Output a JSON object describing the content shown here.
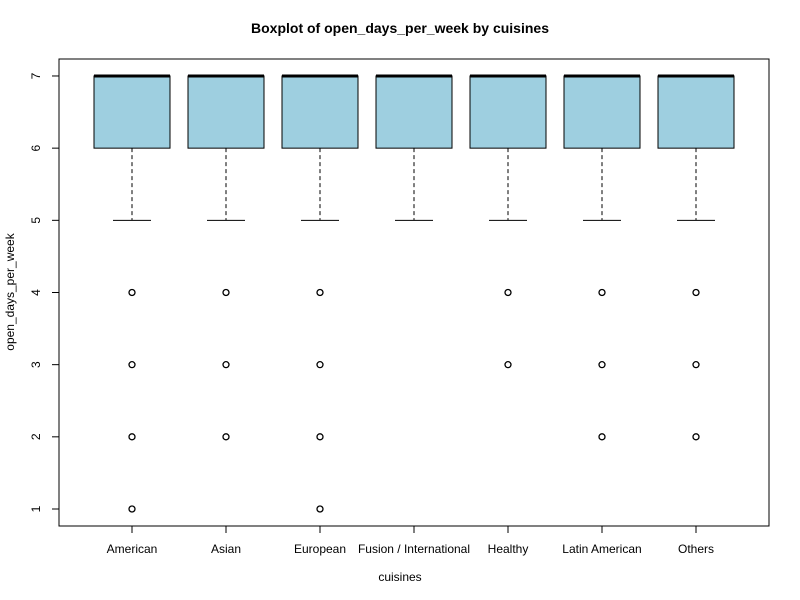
{
  "chart_data": {
    "type": "boxplot",
    "title": "Boxplot of open_days_per_week by cuisines",
    "xlabel": "cuisines",
    "ylabel": "open_days_per_week",
    "ylim": [
      1,
      7
    ],
    "y_ticks": [
      1,
      2,
      3,
      4,
      5,
      6,
      7
    ],
    "box_color": "#9ecfe0",
    "categories": [
      "American",
      "Asian",
      "European",
      "Fusion / International",
      "Healthy",
      "Latin American",
      "Others"
    ],
    "boxes": [
      {
        "category": "American",
        "whisker_low": 5,
        "q1": 6,
        "median": 7,
        "q3": 7,
        "whisker_high": 7,
        "outliers": [
          4,
          3,
          2,
          1
        ]
      },
      {
        "category": "Asian",
        "whisker_low": 5,
        "q1": 6,
        "median": 7,
        "q3": 7,
        "whisker_high": 7,
        "outliers": [
          4,
          3,
          2
        ]
      },
      {
        "category": "European",
        "whisker_low": 5,
        "q1": 6,
        "median": 7,
        "q3": 7,
        "whisker_high": 7,
        "outliers": [
          4,
          3,
          2,
          1
        ]
      },
      {
        "category": "Fusion / International",
        "whisker_low": 5,
        "q1": 6,
        "median": 7,
        "q3": 7,
        "whisker_high": 7,
        "outliers": []
      },
      {
        "category": "Healthy",
        "whisker_low": 5,
        "q1": 6,
        "median": 7,
        "q3": 7,
        "whisker_high": 7,
        "outliers": [
          4,
          3
        ]
      },
      {
        "category": "Latin American",
        "whisker_low": 5,
        "q1": 6,
        "median": 7,
        "q3": 7,
        "whisker_high": 7,
        "outliers": [
          4,
          3,
          2
        ]
      },
      {
        "category": "Others",
        "whisker_low": 5,
        "q1": 6,
        "median": 7,
        "q3": 7,
        "whisker_high": 7,
        "outliers": [
          4,
          3,
          2
        ]
      }
    ]
  }
}
